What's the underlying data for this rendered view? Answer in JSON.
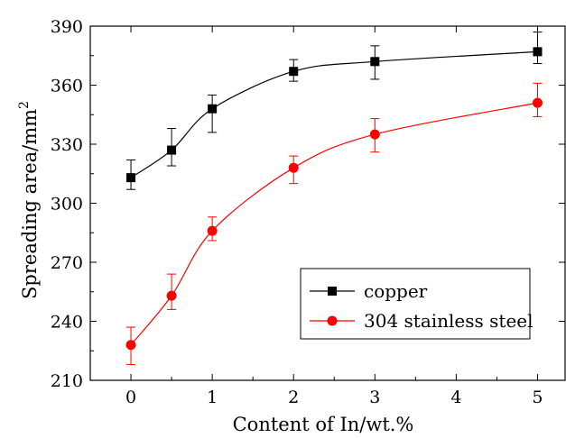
{
  "chart_data": {
    "type": "line",
    "xlabel": "Content of In/wt.%",
    "ylabel": "Spreading area/mm",
    "ylabel_superscript": "2",
    "xlim": [
      -0.5,
      5.35
    ],
    "ylim": [
      210,
      390
    ],
    "xticks": [
      0,
      1,
      2,
      3,
      4,
      5
    ],
    "yticks": [
      210,
      240,
      270,
      300,
      330,
      360,
      390
    ],
    "grid": false,
    "legend_position": "bottom-right",
    "series": [
      {
        "name": "copper",
        "color": "#000000",
        "marker": "square",
        "x": [
          0,
          0.5,
          1,
          2,
          3,
          5
        ],
        "y": [
          313,
          327,
          348,
          367,
          372,
          377
        ],
        "err_low": [
          307,
          319,
          336,
          362,
          363,
          371
        ],
        "err_high": [
          322,
          338,
          355,
          373,
          380,
          387
        ]
      },
      {
        "name": "304 stainless steel",
        "color": "#ff0000",
        "marker": "circle",
        "x": [
          0,
          0.5,
          1,
          2,
          3,
          5
        ],
        "y": [
          228,
          253,
          286,
          318,
          335,
          351
        ],
        "err_low": [
          218,
          246,
          281,
          310,
          326,
          344
        ],
        "err_high": [
          237,
          264,
          293,
          324,
          343,
          361
        ]
      }
    ]
  }
}
